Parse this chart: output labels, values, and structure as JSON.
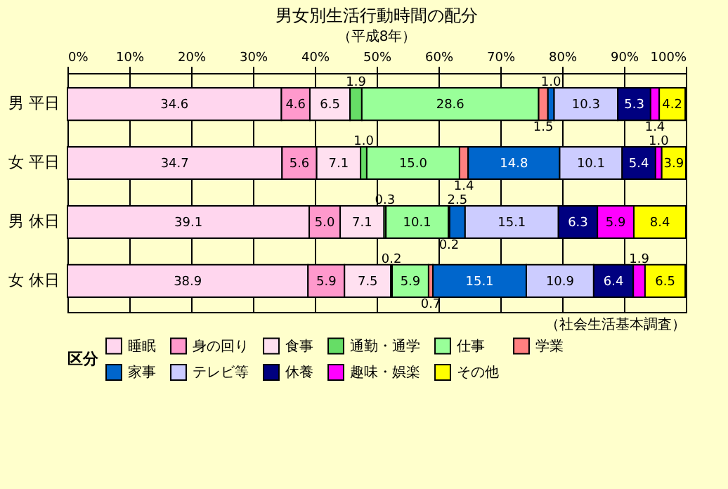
{
  "chart_data": {
    "type": "bar",
    "orientation": "horizontal",
    "stacked": true,
    "title": "男女別生活行動時間の配分",
    "annotations": [
      "（平成8年）",
      "（社会生活基本調査）"
    ],
    "legend_title": "区分",
    "legend": "bottom",
    "grid": "x",
    "categories": [
      "男 平日",
      "女 平日",
      "男 休日",
      "女 休日"
    ],
    "xlim": [
      0,
      100
    ],
    "xticks": [
      {
        "value": 0,
        "label": "0%"
      },
      {
        "value": 10,
        "label": "10%"
      },
      {
        "value": 20,
        "label": "20%"
      },
      {
        "value": 30,
        "label": "30%"
      },
      {
        "value": 40,
        "label": "40%"
      },
      {
        "value": 50,
        "label": "50%"
      },
      {
        "value": 60,
        "label": "60%"
      },
      {
        "value": 70,
        "label": "70%"
      },
      {
        "value": 80,
        "label": "80%"
      },
      {
        "value": 90,
        "label": "90%"
      },
      {
        "value": 100,
        "label": "100%"
      }
    ],
    "series": [
      {
        "name": "睡眠",
        "color": "#ffd6ee",
        "values": [
          34.6,
          34.7,
          39.1,
          38.9
        ],
        "value_labels": [
          "34.6",
          "34.7",
          "39.1",
          "38.9"
        ]
      },
      {
        "name": "身の回り",
        "color": "#ff99cc",
        "values": [
          4.6,
          5.6,
          5.0,
          5.9
        ],
        "value_labels": [
          "4.6",
          "5.6",
          "5.0",
          "5.9"
        ]
      },
      {
        "name": "食事",
        "color": "#ffe0f0",
        "values": [
          6.5,
          7.1,
          7.1,
          7.5
        ],
        "value_labels": [
          "6.5",
          "7.1",
          "7.1",
          "7.5"
        ]
      },
      {
        "name": "通勤・通学",
        "color": "#66dd66",
        "values": [
          1.9,
          1.0,
          0.3,
          0.2
        ],
        "value_labels": [
          "1.9",
          "1.0",
          "0.3",
          "0.2"
        ]
      },
      {
        "name": "仕事",
        "color": "#99ff99",
        "values": [
          28.6,
          15.0,
          10.1,
          5.9
        ],
        "value_labels": [
          "28.6",
          "15.0",
          "10.1",
          "5.9"
        ]
      },
      {
        "name": "学業",
        "color": "#ff8080",
        "values": [
          1.5,
          1.4,
          0.2,
          0.7
        ],
        "value_labels": [
          "1.5",
          "1.4",
          "0.2",
          "0.7"
        ]
      },
      {
        "name": "家事",
        "color": "#0066cc",
        "values": [
          1.0,
          14.8,
          2.5,
          15.1
        ],
        "value_labels": [
          "1.0",
          "14.8",
          "2.5",
          "15.1"
        ]
      },
      {
        "name": "テレビ等",
        "color": "#ccccff",
        "values": [
          10.3,
          10.1,
          15.1,
          10.9
        ],
        "value_labels": [
          "10.3",
          "10.1",
          "15.1",
          "10.9"
        ]
      },
      {
        "name": "休養",
        "color": "#000080",
        "values": [
          5.3,
          5.4,
          6.3,
          6.4
        ],
        "value_labels": [
          "5.3",
          "5.4",
          "6.3",
          "6.4"
        ]
      },
      {
        "name": "趣味・娯楽",
        "color": "#ff00ff",
        "values": [
          1.4,
          1.0,
          5.9,
          1.9
        ],
        "value_labels": [
          "1.4",
          "1.0",
          "5.9",
          "1.9"
        ]
      },
      {
        "name": "その他",
        "color": "#ffff00",
        "values": [
          4.2,
          3.9,
          8.4,
          6.5
        ],
        "value_labels": [
          "4.2",
          "3.9",
          "8.4",
          "6.5"
        ]
      }
    ]
  }
}
